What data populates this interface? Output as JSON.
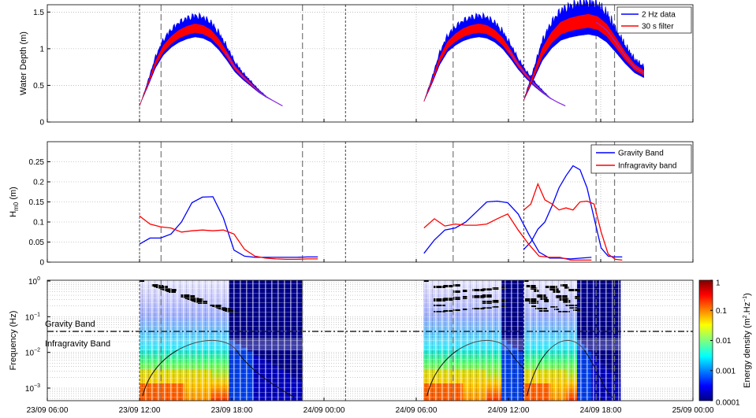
{
  "chart_data": [
    {
      "type": "line",
      "ylabel": "Water Depth (m)",
      "xlim": [
        "23/09 06:00",
        "25/09 00:00"
      ],
      "ylim": [
        0,
        1.6
      ],
      "yticks": [
        "0",
        "0.5",
        "1",
        "1.5"
      ],
      "grid": true,
      "legend_position": "top-right",
      "series": [
        {
          "name": "2 Hz data",
          "color": "#0000ff"
        },
        {
          "name": "30 s filter",
          "color": "#ff0000"
        }
      ],
      "tides": [
        {
          "t0": 6.0,
          "t1": 11.6,
          "peak_t": 9.0,
          "values": [
            0.25,
            0.62,
            0.98,
            1.18,
            1.28,
            1.3,
            1.28,
            1.15,
            0.9,
            0.62,
            0.46,
            0.33,
            0.23
          ]
        },
        {
          "t0": 6.7,
          "t1": 12.3,
          "peak_t": 9.7,
          "values": [
            0.25,
            0.62,
            0.98,
            1.18,
            1.28,
            1.3,
            1.28,
            1.15,
            0.9,
            0.62,
            0.46,
            0.33,
            0.23
          ]
        },
        {
          "t0": 7.2,
          "t1": 12.8,
          "peak_t": 10.3,
          "values": [
            0.3,
            0.72,
            1.05,
            1.27,
            1.37,
            1.42,
            1.35,
            1.12,
            0.9,
            0.66
          ]
        }
      ],
      "vlines_dotted": [
        6.0,
        12.7,
        19.4
      ],
      "vlines_dashed": [
        6.5,
        9.9,
        13.4,
        16.8,
        20.2,
        24.1
      ]
    },
    {
      "type": "line",
      "ylabel": "H",
      "ylabel_sub": "m0",
      "ylabel_unit": " (m)",
      "ylim": [
        0,
        0.3
      ],
      "yticks": [
        "0",
        "0.05",
        "0.1",
        "0.15",
        "0.2",
        "0.25"
      ],
      "grid": true,
      "legend_position": "top-right",
      "series": [
        {
          "name": "Gravity Band",
          "color": "#0000ff"
        },
        {
          "name": "Infragravity band",
          "color": "#ff0000"
        }
      ],
      "gravity": [
        [
          0.045,
          0.06,
          0.06,
          0.07,
          0.1,
          0.148,
          0.162,
          0.163,
          0.11,
          0.03,
          0.015,
          0.012,
          0.012,
          0.012,
          0.012,
          0.012,
          0.013,
          0.013
        ],
        [
          0.022,
          0.055,
          0.08,
          0.085,
          0.1,
          0.125,
          0.15,
          0.152,
          0.148,
          0.12,
          0.07,
          0.025,
          0.01,
          0.01,
          0.008,
          0.01,
          0.012
        ],
        [
          0.032,
          0.05,
          0.082,
          0.1,
          0.14,
          0.185,
          0.215,
          0.24,
          0.23,
          0.185,
          0.11,
          0.035,
          0.015,
          0.013,
          0.013
        ]
      ],
      "infragravity": [
        [
          0.115,
          0.095,
          0.088,
          0.085,
          0.075,
          0.078,
          0.08,
          0.078,
          0.08,
          0.07,
          0.032,
          0.015,
          0.01,
          0.008,
          0.007,
          0.007,
          0.008,
          0.008
        ],
        [
          0.085,
          0.108,
          0.09,
          0.095,
          0.092,
          0.092,
          0.095,
          0.108,
          0.12,
          0.08,
          0.045,
          0.015,
          0.012,
          0.012,
          0.005,
          0.005,
          0.005
        ],
        [
          0.13,
          0.145,
          0.195,
          0.155,
          0.145,
          0.13,
          0.135,
          0.13,
          0.15,
          0.152,
          0.145,
          0.075,
          0.02,
          0.007,
          0.005
        ]
      ]
    },
    {
      "type": "heatmap",
      "ylabel": "Frequency (Hz)",
      "yscale": "log",
      "yticks": [
        "10",
        "10",
        "10",
        "10"
      ],
      "ytick_exps": [
        "0",
        "−1",
        "−2",
        "−3"
      ],
      "xticks": [
        "23/09 06:00",
        "23/09 12:00",
        "23/09 18:00",
        "24/09 00:00",
        "24/09 06:00",
        "24/09 12:00",
        "24/09 18:00",
        "25/09 00:00"
      ],
      "annotations": [
        "Gravity Band",
        "Infragravity Band"
      ],
      "colorbar_label": "Energy density (m",
      "colorbar_label_sup1": "2",
      "colorbar_label_mid": ".Hz",
      "colorbar_label_sup2": "−1",
      "colorbar_label_end": ")",
      "colorbar_ticks": [
        "1",
        "0.1",
        "0.01",
        "0.001",
        "0.0001"
      ],
      "colorscale": "log",
      "colorbar_range": [
        0.0001,
        1
      ],
      "colors": [
        "#00007f",
        "#0000ff",
        "#007fff",
        "#00ffff",
        "#7fff7f",
        "#ffff00",
        "#ff7f00",
        "#ff0000",
        "#7f0000"
      ]
    }
  ]
}
